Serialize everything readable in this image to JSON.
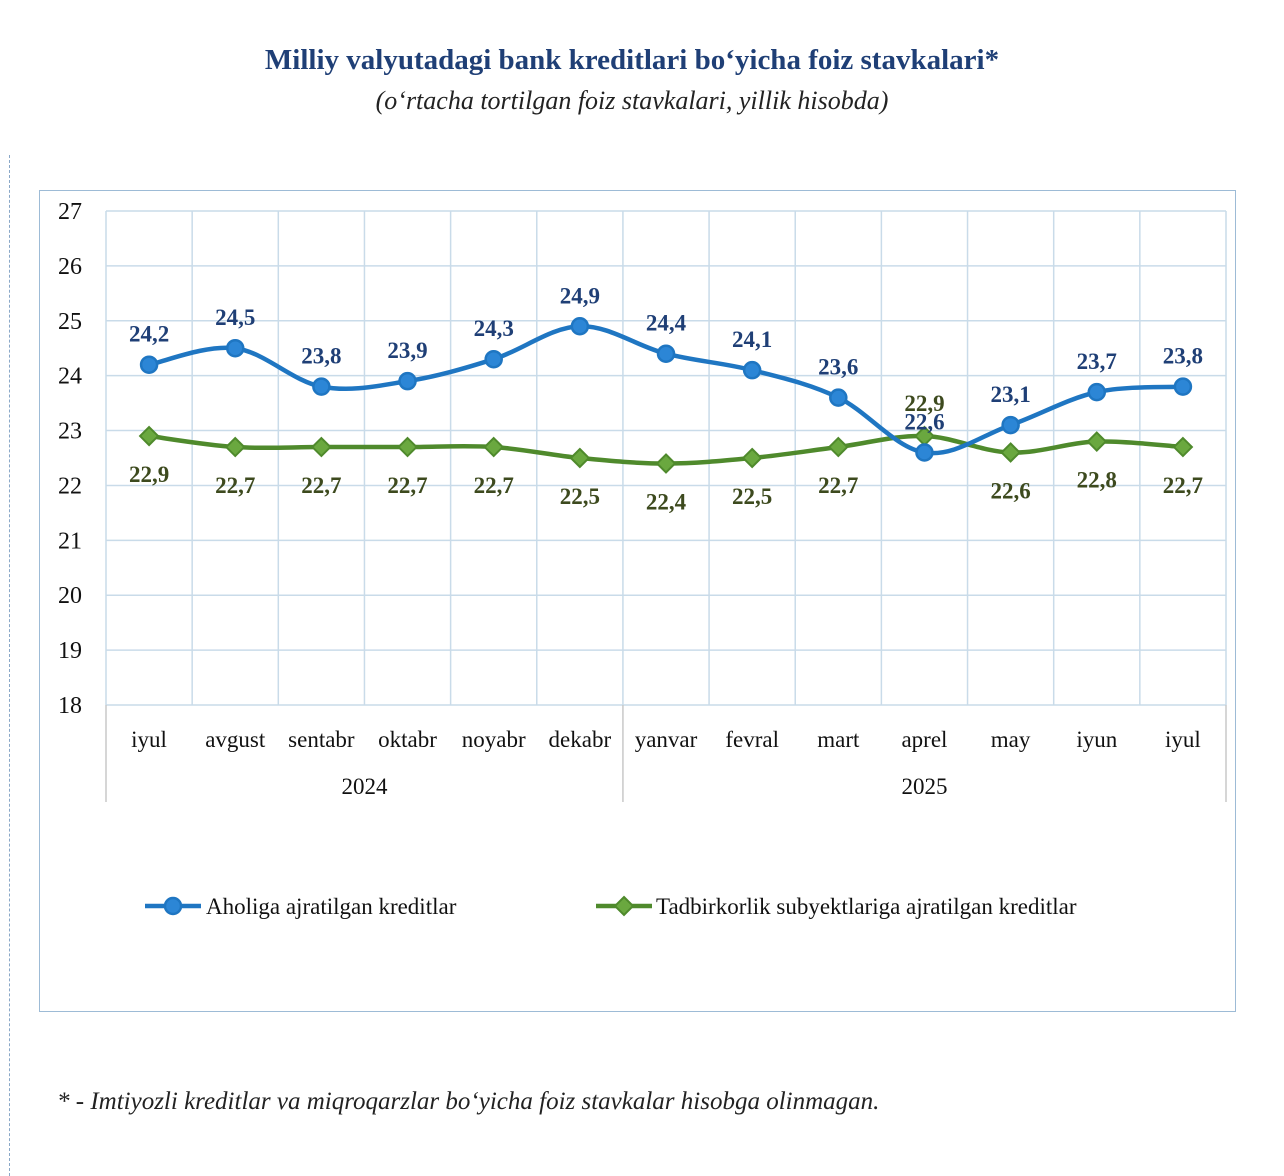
{
  "title": "Milliy valyutadagi bank kreditlari bo‘yicha foiz stavkalari*",
  "subtitle": "(o‘rtacha tortilgan foiz stavkalari, yillik hisobda)",
  "footnote": "* - Imtiyozli kreditlar va miqroqarzlar bo‘yicha foiz stavkalar hisobga olinmagan.",
  "colors": {
    "series1": "#1f76c2",
    "series1_fill": "#2c86d6",
    "series2": "#4f8a2c",
    "series2_fill": "#6aa83f",
    "label1": "#1f3f76",
    "label2": "#3d4a1e",
    "grid": "#c9dbe9"
  },
  "chart_data": {
    "type": "line",
    "categories": [
      "iyul",
      "avgust",
      "sentabr",
      "oktabr",
      "noyabr",
      "dekabr",
      "yanvar",
      "fevral",
      "mart",
      "aprel",
      "may",
      "iyun",
      "iyul"
    ],
    "year_groups": [
      {
        "label": "2024",
        "count": 6
      },
      {
        "label": "2025",
        "count": 7
      }
    ],
    "ylim": [
      18,
      27
    ],
    "yticks": [
      18,
      19,
      20,
      21,
      22,
      23,
      24,
      25,
      26,
      27
    ],
    "grid": true,
    "legend_position": "bottom",
    "smooth": true,
    "series": [
      {
        "name": "Aholiga ajratilgan kreditlar",
        "marker": "circle",
        "values": [
          24.2,
          24.5,
          23.8,
          23.9,
          24.3,
          24.9,
          24.4,
          24.1,
          23.6,
          22.6,
          23.1,
          23.7,
          23.8
        ],
        "labels": [
          "24,2",
          "24,5",
          "23,8",
          "23,9",
          "24,3",
          "24,9",
          "24,4",
          "24,1",
          "23,6",
          "22,6",
          "23,1",
          "23,7",
          "23,8"
        ]
      },
      {
        "name": "Tadbirkorlik subyektlariga ajratilgan kreditlar",
        "marker": "diamond",
        "values": [
          22.9,
          22.7,
          22.7,
          22.7,
          22.7,
          22.5,
          22.4,
          22.5,
          22.7,
          22.9,
          22.6,
          22.8,
          22.7
        ],
        "labels": [
          "22,9",
          "22,7",
          "22,7",
          "22,7",
          "22,7",
          "22,5",
          "22,4",
          "22,5",
          "22,7",
          "22,9",
          "22,6",
          "22,8",
          "22,7"
        ]
      }
    ]
  }
}
